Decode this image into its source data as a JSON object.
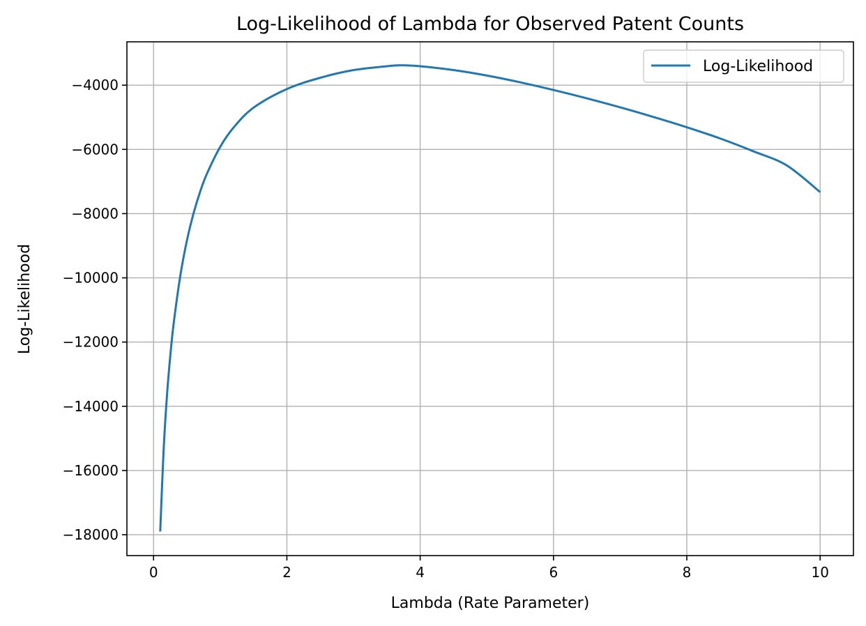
{
  "chart_data": {
    "type": "line",
    "title": "Log-Likelihood of Lambda for Observed Patent Counts",
    "xlabel": "Lambda (Rate Parameter)",
    "ylabel": "Log-Likelihood",
    "xlim": [
      -0.4,
      10.5
    ],
    "ylim": [
      -18650,
      -2650
    ],
    "x_ticks": [
      0,
      2,
      4,
      6,
      8,
      10
    ],
    "x_tick_labels": [
      "0",
      "2",
      "4",
      "6",
      "8",
      "10"
    ],
    "y_ticks": [
      -18000,
      -16000,
      -14000,
      -12000,
      -10000,
      -8000,
      -6000,
      -4000
    ],
    "y_tick_labels": [
      "−18000",
      "−16000",
      "−14000",
      "−12000",
      "−10000",
      "−8000",
      "−6000",
      "−4000"
    ],
    "grid": true,
    "legend": {
      "position": "upper-right"
    },
    "colors": {
      "line": "#1f77b4",
      "grid": "#b0b0b0",
      "axes": "#000000"
    },
    "series": [
      {
        "name": "Log-Likelihood",
        "x": [
          0.1,
          0.15,
          0.2,
          0.25,
          0.3,
          0.4,
          0.5,
          0.6,
          0.7,
          0.8,
          1.0,
          1.2,
          1.5,
          2.0,
          2.5,
          3.0,
          3.5,
          3.7,
          4.0,
          4.5,
          5.0,
          5.5,
          6.0,
          6.5,
          7.0,
          7.5,
          8.0,
          8.5,
          9.0,
          9.5,
          10.0
        ],
        "values": [
          -17900,
          -15400,
          -13700,
          -12450,
          -11450,
          -9950,
          -8840,
          -7990,
          -7310,
          -6760,
          -5920,
          -5320,
          -4700,
          -4120,
          -3770,
          -3530,
          -3410,
          -3380,
          -3410,
          -3530,
          -3700,
          -3910,
          -4150,
          -4410,
          -4690,
          -4990,
          -5310,
          -5660,
          -6060,
          -6500,
          -7330
        ]
      }
    ]
  }
}
